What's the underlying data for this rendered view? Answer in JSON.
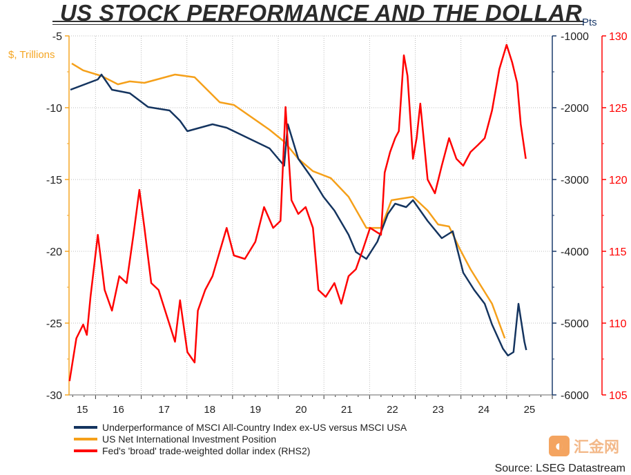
{
  "chart_data": {
    "type": "line",
    "title": "US STOCK PERFORMANCE AND THE DOLLAR",
    "source": "Source: LSEG Datastream",
    "watermark": "汇金网",
    "xlim": [
      2015.42,
      2026.0
    ],
    "x_ticks": [
      "15",
      "16",
      "17",
      "18",
      "19",
      "20",
      "21",
      "22",
      "23",
      "24",
      "25"
    ],
    "axes": {
      "left": {
        "label": "$, Trillions",
        "ylim": [
          -30,
          -5
        ],
        "ticks": [
          "-5",
          "-10",
          "-15",
          "-20",
          "-25",
          "-30"
        ],
        "color": "#f5a623"
      },
      "right1": {
        "label": "Pts",
        "ylim": [
          -6000,
          -1000
        ],
        "ticks": [
          "-1000",
          "-2000",
          "-3000",
          "-4000",
          "-5000",
          "-6000"
        ],
        "color": "#1a3a6b"
      },
      "right2": {
        "label": "",
        "ylim": [
          105,
          130
        ],
        "ticks": [
          "130",
          "125",
          "120",
          "115",
          "110",
          "105"
        ],
        "color": "#ff0000"
      }
    },
    "grid": true,
    "legend_position": "bottom-left",
    "series": [
      {
        "name": "Underperformance of MSCI All-Country Index ex-US versus MSCI USA",
        "axis": "right1",
        "color": "#14345f",
        "points": [
          [
            2015.45,
            -1750
          ],
          [
            2016.05,
            -1606
          ],
          [
            2016.13,
            -1538
          ],
          [
            2016.36,
            -1750
          ],
          [
            2016.75,
            -1798
          ],
          [
            2017.15,
            -1990
          ],
          [
            2017.62,
            -2038
          ],
          [
            2017.85,
            -2183
          ],
          [
            2018.01,
            -2327
          ],
          [
            2018.56,
            -2231
          ],
          [
            2018.87,
            -2279
          ],
          [
            2019.34,
            -2423
          ],
          [
            2019.81,
            -2567
          ],
          [
            2020.13,
            -2808
          ],
          [
            2020.21,
            -2231
          ],
          [
            2020.44,
            -2712
          ],
          [
            2020.76,
            -3000
          ],
          [
            2020.99,
            -3240
          ],
          [
            2021.23,
            -3433
          ],
          [
            2021.54,
            -3769
          ],
          [
            2021.7,
            -4010
          ],
          [
            2021.93,
            -4106
          ],
          [
            2022.17,
            -3865
          ],
          [
            2022.4,
            -3481
          ],
          [
            2022.56,
            -3337
          ],
          [
            2022.8,
            -3385
          ],
          [
            2022.95,
            -3288
          ],
          [
            2023.27,
            -3577
          ],
          [
            2023.58,
            -3817
          ],
          [
            2023.82,
            -3721
          ],
          [
            2024.05,
            -4298
          ],
          [
            2024.29,
            -4538
          ],
          [
            2024.52,
            -4731
          ],
          [
            2024.68,
            -5019
          ],
          [
            2024.92,
            -5356
          ],
          [
            2025.03,
            -5452
          ],
          [
            2025.15,
            -5404
          ],
          [
            2025.26,
            -4731
          ],
          [
            2025.39,
            -5260
          ],
          [
            2025.43,
            -5375
          ]
        ]
      },
      {
        "name": "US Net International Investment Position",
        "axis": "left",
        "color": "#f5a01a",
        "points": [
          [
            2015.48,
            -6.92
          ],
          [
            2015.73,
            -7.4
          ],
          [
            2016.13,
            -7.79
          ],
          [
            2016.49,
            -8.37
          ],
          [
            2016.75,
            -8.17
          ],
          [
            2017.07,
            -8.27
          ],
          [
            2017.74,
            -7.69
          ],
          [
            2018.17,
            -7.88
          ],
          [
            2018.72,
            -9.62
          ],
          [
            2019.03,
            -9.81
          ],
          [
            2019.81,
            -11.54
          ],
          [
            2020.13,
            -12.36
          ],
          [
            2020.44,
            -13.56
          ],
          [
            2020.76,
            -14.42
          ],
          [
            2021.15,
            -14.9
          ],
          [
            2021.54,
            -16.2
          ],
          [
            2021.93,
            -18.37
          ],
          [
            2022.25,
            -18.37
          ],
          [
            2022.48,
            -16.44
          ],
          [
            2022.95,
            -16.2
          ],
          [
            2023.27,
            -17.16
          ],
          [
            2023.5,
            -18.13
          ],
          [
            2023.74,
            -18.27
          ],
          [
            2023.97,
            -19.81
          ],
          [
            2024.21,
            -21.25
          ],
          [
            2024.68,
            -23.65
          ],
          [
            2024.96,
            -26.06
          ]
        ]
      },
      {
        "name": "Fed's 'broad' trade-weighted dollar index (RHS2)",
        "axis": "right2",
        "color": "#ff0000",
        "points": [
          [
            2015.43,
            105.96
          ],
          [
            2015.58,
            108.94
          ],
          [
            2015.73,
            109.9
          ],
          [
            2015.81,
            109.18
          ],
          [
            2015.89,
            111.83
          ],
          [
            2016.05,
            116.15
          ],
          [
            2016.2,
            112.31
          ],
          [
            2016.36,
            110.87
          ],
          [
            2016.52,
            113.27
          ],
          [
            2016.68,
            112.79
          ],
          [
            2016.83,
            116.15
          ],
          [
            2016.96,
            119.28
          ],
          [
            2017.07,
            116.63
          ],
          [
            2017.22,
            112.79
          ],
          [
            2017.38,
            112.31
          ],
          [
            2017.62,
            109.9
          ],
          [
            2017.74,
            108.7
          ],
          [
            2017.85,
            111.59
          ],
          [
            2018.01,
            107.98
          ],
          [
            2018.17,
            107.26
          ],
          [
            2018.24,
            110.87
          ],
          [
            2018.4,
            112.31
          ],
          [
            2018.56,
            113.27
          ],
          [
            2018.87,
            116.63
          ],
          [
            2019.03,
            114.71
          ],
          [
            2019.27,
            114.47
          ],
          [
            2019.5,
            115.67
          ],
          [
            2019.69,
            118.08
          ],
          [
            2019.89,
            116.63
          ],
          [
            2020.05,
            117.12
          ],
          [
            2020.16,
            125.05
          ],
          [
            2020.29,
            118.56
          ],
          [
            2020.44,
            117.6
          ],
          [
            2020.6,
            118.08
          ],
          [
            2020.76,
            116.63
          ],
          [
            2020.88,
            112.31
          ],
          [
            2021.04,
            111.83
          ],
          [
            2021.23,
            112.79
          ],
          [
            2021.38,
            111.35
          ],
          [
            2021.54,
            113.27
          ],
          [
            2021.7,
            113.75
          ],
          [
            2021.86,
            115.19
          ],
          [
            2022.01,
            116.63
          ],
          [
            2022.25,
            116.15
          ],
          [
            2022.33,
            120.48
          ],
          [
            2022.45,
            121.92
          ],
          [
            2022.56,
            122.88
          ],
          [
            2022.64,
            123.37
          ],
          [
            2022.75,
            128.65
          ],
          [
            2022.83,
            127.21
          ],
          [
            2022.95,
            121.44
          ],
          [
            2023.03,
            122.88
          ],
          [
            2023.11,
            125.29
          ],
          [
            2023.27,
            120.0
          ],
          [
            2023.43,
            119.04
          ],
          [
            2023.58,
            120.96
          ],
          [
            2023.74,
            122.88
          ],
          [
            2023.9,
            121.44
          ],
          [
            2024.05,
            120.96
          ],
          [
            2024.21,
            121.92
          ],
          [
            2024.37,
            122.4
          ],
          [
            2024.52,
            122.88
          ],
          [
            2024.68,
            124.81
          ],
          [
            2024.84,
            127.69
          ],
          [
            2025.0,
            129.38
          ],
          [
            2025.12,
            128.17
          ],
          [
            2025.23,
            126.73
          ],
          [
            2025.31,
            123.85
          ],
          [
            2025.42,
            121.44
          ]
        ]
      }
    ]
  }
}
